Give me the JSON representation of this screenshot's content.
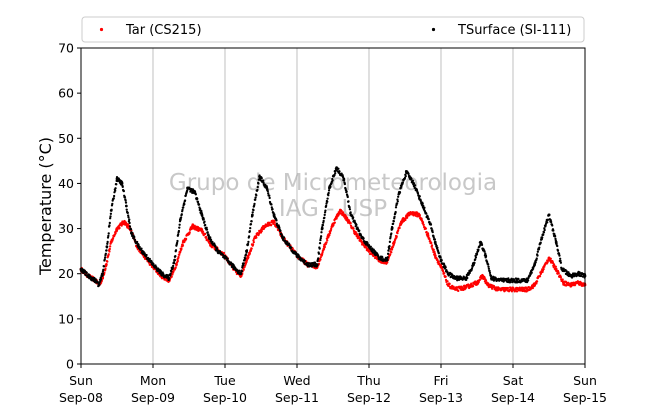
{
  "chart_data": {
    "type": "scatter",
    "ylabel": "Temperature (°C)",
    "xlabel": "",
    "ylim": [
      0,
      70
    ],
    "yticks": [
      0,
      10,
      20,
      30,
      40,
      50,
      60,
      70
    ],
    "xlim_days": [
      0,
      7
    ],
    "xticks": [
      {
        "day": "Sun",
        "date": "Sep-08"
      },
      {
        "day": "Mon",
        "date": "Sep-09"
      },
      {
        "day": "Tue",
        "date": "Sep-10"
      },
      {
        "day": "Wed",
        "date": "Sep-11"
      },
      {
        "day": "Thu",
        "date": "Sep-12"
      },
      {
        "day": "Fri",
        "date": "Sep-13"
      },
      {
        "day": "Sat",
        "date": "Sep-14"
      },
      {
        "day": "Sun",
        "date": "Sep-15"
      }
    ],
    "grid": "vertical",
    "legend_position": "top",
    "watermark": [
      "Grupo de Micrometeorologia",
      "IAG - USP"
    ],
    "series": [
      {
        "name": "Tar (CS215)",
        "color": "#ff0000",
        "points": [
          [
            0.0,
            21
          ],
          [
            0.1,
            19.5
          ],
          [
            0.2,
            18.5
          ],
          [
            0.25,
            17.5
          ],
          [
            0.3,
            19
          ],
          [
            0.35,
            22
          ],
          [
            0.42,
            27
          ],
          [
            0.5,
            30
          ],
          [
            0.6,
            31.5
          ],
          [
            0.68,
            30
          ],
          [
            0.78,
            26
          ],
          [
            0.9,
            23.5
          ],
          [
            1.0,
            21.5
          ],
          [
            1.12,
            19.5
          ],
          [
            1.22,
            18.5
          ],
          [
            1.3,
            21
          ],
          [
            1.42,
            27
          ],
          [
            1.55,
            30.5
          ],
          [
            1.68,
            29.5
          ],
          [
            1.8,
            26.5
          ],
          [
            2.0,
            24
          ],
          [
            2.12,
            21
          ],
          [
            2.22,
            19.5
          ],
          [
            2.3,
            23
          ],
          [
            2.42,
            28
          ],
          [
            2.55,
            30.5
          ],
          [
            2.68,
            31.5
          ],
          [
            2.8,
            28
          ],
          [
            3.0,
            24
          ],
          [
            3.15,
            22
          ],
          [
            3.28,
            21.5
          ],
          [
            3.38,
            26
          ],
          [
            3.5,
            31
          ],
          [
            3.6,
            34
          ],
          [
            3.7,
            32
          ],
          [
            3.85,
            28
          ],
          [
            4.0,
            25
          ],
          [
            4.15,
            23
          ],
          [
            4.25,
            22.5
          ],
          [
            4.35,
            27
          ],
          [
            4.45,
            31.5
          ],
          [
            4.58,
            33.5
          ],
          [
            4.7,
            33
          ],
          [
            4.82,
            28.5
          ],
          [
            4.92,
            24
          ],
          [
            5.0,
            21.5
          ],
          [
            5.1,
            17.5
          ],
          [
            5.2,
            16.5
          ],
          [
            5.35,
            17
          ],
          [
            5.5,
            18
          ],
          [
            5.58,
            19.5
          ],
          [
            5.65,
            17.5
          ],
          [
            5.8,
            16.5
          ],
          [
            6.0,
            16.5
          ],
          [
            6.2,
            16.5
          ],
          [
            6.3,
            17.5
          ],
          [
            6.4,
            20.5
          ],
          [
            6.5,
            23.5
          ],
          [
            6.6,
            21
          ],
          [
            6.7,
            18
          ],
          [
            6.8,
            17.5
          ],
          [
            6.9,
            18
          ],
          [
            7.0,
            17.5
          ]
        ]
      },
      {
        "name": "TSurface (SI-111)",
        "color": "#000000",
        "points": [
          [
            0.0,
            21
          ],
          [
            0.1,
            19.5
          ],
          [
            0.2,
            18.5
          ],
          [
            0.25,
            17.5
          ],
          [
            0.3,
            20
          ],
          [
            0.36,
            26
          ],
          [
            0.42,
            34
          ],
          [
            0.5,
            41
          ],
          [
            0.57,
            40
          ],
          [
            0.63,
            35
          ],
          [
            0.7,
            29
          ],
          [
            0.8,
            26
          ],
          [
            0.9,
            24
          ],
          [
            1.0,
            22
          ],
          [
            1.12,
            20
          ],
          [
            1.22,
            19
          ],
          [
            1.3,
            23
          ],
          [
            1.38,
            32
          ],
          [
            1.48,
            39
          ],
          [
            1.58,
            38
          ],
          [
            1.68,
            33
          ],
          [
            1.78,
            28
          ],
          [
            1.9,
            25
          ],
          [
            2.0,
            23.5
          ],
          [
            2.12,
            21.5
          ],
          [
            2.22,
            20
          ],
          [
            2.3,
            25
          ],
          [
            2.38,
            33
          ],
          [
            2.48,
            41.5
          ],
          [
            2.58,
            39
          ],
          [
            2.68,
            33
          ],
          [
            2.8,
            28
          ],
          [
            3.0,
            24
          ],
          [
            3.15,
            22
          ],
          [
            3.28,
            22
          ],
          [
            3.35,
            30
          ],
          [
            3.45,
            39
          ],
          [
            3.55,
            43.5
          ],
          [
            3.65,
            41
          ],
          [
            3.75,
            33
          ],
          [
            3.9,
            28
          ],
          [
            4.0,
            26
          ],
          [
            4.15,
            23.5
          ],
          [
            4.25,
            23
          ],
          [
            4.32,
            30
          ],
          [
            4.42,
            38
          ],
          [
            4.52,
            42.5
          ],
          [
            4.62,
            40
          ],
          [
            4.75,
            35
          ],
          [
            4.85,
            31
          ],
          [
            4.92,
            27
          ],
          [
            5.0,
            23
          ],
          [
            5.1,
            20
          ],
          [
            5.2,
            19
          ],
          [
            5.35,
            19
          ],
          [
            5.45,
            22
          ],
          [
            5.55,
            27
          ],
          [
            5.62,
            24
          ],
          [
            5.7,
            19
          ],
          [
            5.85,
            18.5
          ],
          [
            6.0,
            18.5
          ],
          [
            6.2,
            18.5
          ],
          [
            6.3,
            22
          ],
          [
            6.4,
            28
          ],
          [
            6.5,
            33
          ],
          [
            6.6,
            27
          ],
          [
            6.68,
            21
          ],
          [
            6.8,
            19.5
          ],
          [
            6.9,
            20
          ],
          [
            7.0,
            19.5
          ]
        ]
      }
    ]
  }
}
